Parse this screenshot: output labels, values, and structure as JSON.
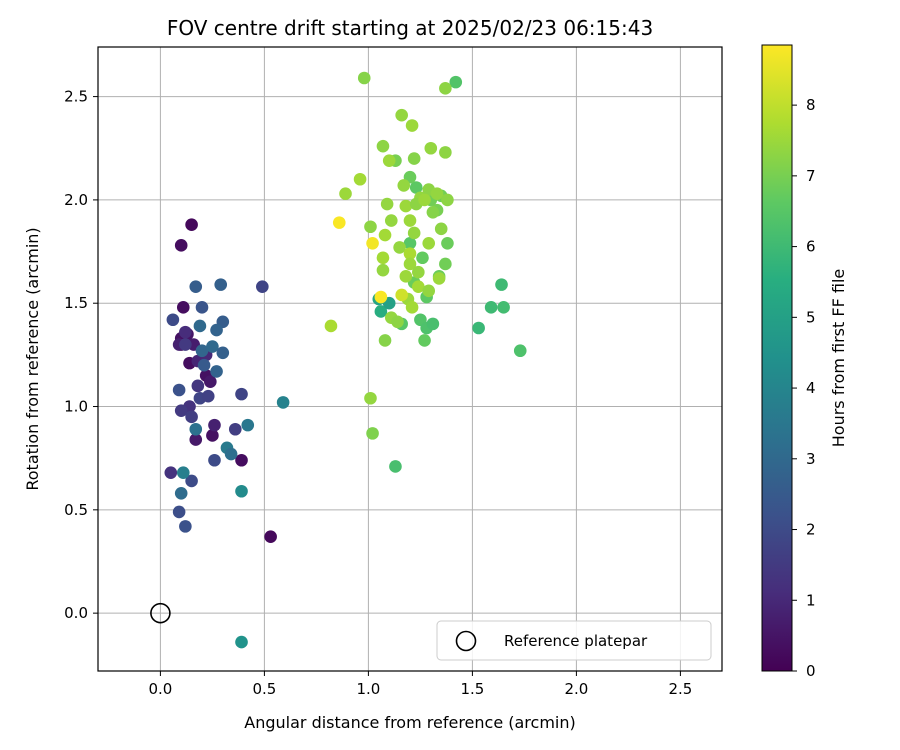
{
  "chart_data": {
    "type": "scatter",
    "title": "FOV centre drift starting at 2025/02/23 06:15:43",
    "xlabel": "Angular distance from reference (arcmin)",
    "ylabel": "Rotation from reference (arcmin)",
    "xlim": [
      -0.3,
      2.7
    ],
    "ylim": [
      -0.28,
      2.74
    ],
    "xticks": [
      "0.0",
      "0.5",
      "1.0",
      "1.5",
      "2.0",
      "2.5"
    ],
    "yticks": [
      "0.0",
      "0.5",
      "1.0",
      "1.5",
      "2.0",
      "2.5"
    ],
    "grid": true,
    "legend": {
      "label": "Reference platepar",
      "placement": "lower-right"
    },
    "reference_point": {
      "x": 0.0,
      "y": 0.0
    },
    "colorbar": {
      "label": "Hours from first FF file",
      "range": [
        0,
        8.85
      ],
      "ticks": [
        "0",
        "1",
        "2",
        "3",
        "4",
        "5",
        "6",
        "7",
        "8"
      ],
      "colormap": "viridis"
    },
    "points": [
      {
        "x": 0.15,
        "y": 1.88,
        "h": 0.2
      },
      {
        "x": 0.1,
        "y": 1.78,
        "h": 0.3
      },
      {
        "x": 0.11,
        "y": 1.48,
        "h": 0.3
      },
      {
        "x": 0.1,
        "y": 1.33,
        "h": 0.4
      },
      {
        "x": 0.1,
        "y": 1.3,
        "h": 0.2
      },
      {
        "x": 0.13,
        "y": 1.35,
        "h": 0.5
      },
      {
        "x": 0.14,
        "y": 1.21,
        "h": 0.3
      },
      {
        "x": 0.22,
        "y": 1.15,
        "h": 0.4
      },
      {
        "x": 0.25,
        "y": 0.86,
        "h": 0.4
      },
      {
        "x": 0.39,
        "y": 0.74,
        "h": 0.3
      },
      {
        "x": 0.53,
        "y": 0.37,
        "h": 0.2
      },
      {
        "x": 0.17,
        "y": 0.84,
        "h": 0.6
      },
      {
        "x": 0.24,
        "y": 1.12,
        "h": 0.6
      },
      {
        "x": 0.16,
        "y": 1.3,
        "h": 0.7
      },
      {
        "x": 0.26,
        "y": 0.91,
        "h": 0.8
      },
      {
        "x": 0.18,
        "y": 1.22,
        "h": 0.9
      },
      {
        "x": 0.22,
        "y": 1.25,
        "h": 1.0
      },
      {
        "x": 0.12,
        "y": 1.36,
        "h": 1.1
      },
      {
        "x": 0.09,
        "y": 1.3,
        "h": 0.8
      },
      {
        "x": 0.49,
        "y": 1.58,
        "h": 1.8
      },
      {
        "x": 0.06,
        "y": 1.42,
        "h": 2.0
      },
      {
        "x": 0.12,
        "y": 1.3,
        "h": 1.5
      },
      {
        "x": 0.18,
        "y": 1.1,
        "h": 1.4
      },
      {
        "x": 0.14,
        "y": 1.0,
        "h": 1.3
      },
      {
        "x": 0.1,
        "y": 0.98,
        "h": 1.5
      },
      {
        "x": 0.15,
        "y": 0.95,
        "h": 1.6
      },
      {
        "x": 0.19,
        "y": 1.04,
        "h": 1.8
      },
      {
        "x": 0.23,
        "y": 1.05,
        "h": 1.7
      },
      {
        "x": 0.36,
        "y": 0.89,
        "h": 1.6
      },
      {
        "x": 0.39,
        "y": 1.06,
        "h": 1.8
      },
      {
        "x": 0.09,
        "y": 1.08,
        "h": 2.2
      },
      {
        "x": 0.05,
        "y": 0.68,
        "h": 1.3
      },
      {
        "x": 0.09,
        "y": 0.49,
        "h": 2.1
      },
      {
        "x": 0.12,
        "y": 0.42,
        "h": 2.2
      },
      {
        "x": 0.15,
        "y": 0.64,
        "h": 2.0
      },
      {
        "x": 0.26,
        "y": 0.74,
        "h": 2.0
      },
      {
        "x": 0.17,
        "y": 1.58,
        "h": 2.6
      },
      {
        "x": 0.2,
        "y": 1.48,
        "h": 2.3
      },
      {
        "x": 0.29,
        "y": 1.59,
        "h": 2.7
      },
      {
        "x": 0.3,
        "y": 1.41,
        "h": 2.6
      },
      {
        "x": 0.27,
        "y": 1.37,
        "h": 2.8
      },
      {
        "x": 0.19,
        "y": 1.39,
        "h": 3.0
      },
      {
        "x": 0.2,
        "y": 1.27,
        "h": 2.9
      },
      {
        "x": 0.25,
        "y": 1.29,
        "h": 3.0
      },
      {
        "x": 0.3,
        "y": 1.26,
        "h": 2.7
      },
      {
        "x": 0.21,
        "y": 1.2,
        "h": 2.5
      },
      {
        "x": 0.27,
        "y": 1.17,
        "h": 2.8
      },
      {
        "x": 0.42,
        "y": 0.91,
        "h": 3.5
      },
      {
        "x": 0.17,
        "y": 0.89,
        "h": 3.3
      },
      {
        "x": 0.32,
        "y": 0.8,
        "h": 3.6
      },
      {
        "x": 0.34,
        "y": 0.77,
        "h": 3.2
      },
      {
        "x": 0.1,
        "y": 0.58,
        "h": 3.1
      },
      {
        "x": 0.11,
        "y": 0.68,
        "h": 3.8
      },
      {
        "x": 0.59,
        "y": 1.02,
        "h": 3.9
      },
      {
        "x": 0.39,
        "y": 0.59,
        "h": 4.2
      },
      {
        "x": 0.39,
        "y": -0.14,
        "h": 4.5
      },
      {
        "x": 1.05,
        "y": 1.52,
        "h": 5.2
      },
      {
        "x": 1.06,
        "y": 1.46,
        "h": 5.5
      },
      {
        "x": 1.1,
        "y": 1.5,
        "h": 5.0
      },
      {
        "x": 1.53,
        "y": 1.38,
        "h": 5.9
      },
      {
        "x": 1.59,
        "y": 1.48,
        "h": 6.0
      },
      {
        "x": 1.65,
        "y": 1.48,
        "h": 6.1
      },
      {
        "x": 1.64,
        "y": 1.59,
        "h": 6.0
      },
      {
        "x": 1.73,
        "y": 1.27,
        "h": 6.3
      },
      {
        "x": 1.13,
        "y": 0.71,
        "h": 6.2
      },
      {
        "x": 1.42,
        "y": 2.57,
        "h": 6.4
      },
      {
        "x": 1.25,
        "y": 1.42,
        "h": 6.4
      },
      {
        "x": 1.28,
        "y": 1.38,
        "h": 6.3
      },
      {
        "x": 1.31,
        "y": 1.4,
        "h": 6.2
      },
      {
        "x": 1.16,
        "y": 1.4,
        "h": 6.5
      },
      {
        "x": 1.28,
        "y": 1.53,
        "h": 6.6
      },
      {
        "x": 1.27,
        "y": 1.32,
        "h": 6.7
      },
      {
        "x": 1.23,
        "y": 2.06,
        "h": 6.6
      },
      {
        "x": 1.2,
        "y": 1.79,
        "h": 6.5
      },
      {
        "x": 1.22,
        "y": 1.6,
        "h": 6.8
      },
      {
        "x": 1.26,
        "y": 1.72,
        "h": 6.7
      },
      {
        "x": 1.34,
        "y": 1.63,
        "h": 6.8
      },
      {
        "x": 1.37,
        "y": 1.69,
        "h": 6.9
      },
      {
        "x": 1.38,
        "y": 1.79,
        "h": 6.8
      },
      {
        "x": 1.3,
        "y": 2.0,
        "h": 6.9
      },
      {
        "x": 1.33,
        "y": 1.95,
        "h": 7.0
      },
      {
        "x": 1.35,
        "y": 2.02,
        "h": 6.9
      },
      {
        "x": 1.2,
        "y": 2.11,
        "h": 6.8
      },
      {
        "x": 1.13,
        "y": 2.19,
        "h": 7.0
      },
      {
        "x": 1.22,
        "y": 2.2,
        "h": 7.2
      },
      {
        "x": 0.98,
        "y": 2.59,
        "h": 7.2
      },
      {
        "x": 1.37,
        "y": 2.54,
        "h": 7.3
      },
      {
        "x": 1.16,
        "y": 2.41,
        "h": 7.4
      },
      {
        "x": 1.21,
        "y": 2.36,
        "h": 7.5
      },
      {
        "x": 1.07,
        "y": 2.26,
        "h": 7.3
      },
      {
        "x": 1.3,
        "y": 2.25,
        "h": 7.4
      },
      {
        "x": 1.37,
        "y": 2.23,
        "h": 7.3
      },
      {
        "x": 1.1,
        "y": 2.19,
        "h": 7.5
      },
      {
        "x": 0.96,
        "y": 2.1,
        "h": 7.6
      },
      {
        "x": 0.89,
        "y": 2.03,
        "h": 7.5
      },
      {
        "x": 1.17,
        "y": 2.07,
        "h": 7.4
      },
      {
        "x": 1.25,
        "y": 2.01,
        "h": 7.4
      },
      {
        "x": 1.29,
        "y": 2.05,
        "h": 7.3
      },
      {
        "x": 1.33,
        "y": 2.03,
        "h": 7.4
      },
      {
        "x": 1.38,
        "y": 2.0,
        "h": 7.3
      },
      {
        "x": 1.09,
        "y": 1.98,
        "h": 7.4
      },
      {
        "x": 1.18,
        "y": 1.97,
        "h": 7.5
      },
      {
        "x": 1.23,
        "y": 1.98,
        "h": 7.3
      },
      {
        "x": 1.27,
        "y": 2.0,
        "h": 7.5
      },
      {
        "x": 1.31,
        "y": 1.94,
        "h": 7.2
      },
      {
        "x": 1.11,
        "y": 1.9,
        "h": 7.4
      },
      {
        "x": 1.2,
        "y": 1.9,
        "h": 7.5
      },
      {
        "x": 1.01,
        "y": 1.87,
        "h": 7.3
      },
      {
        "x": 1.08,
        "y": 1.83,
        "h": 7.6
      },
      {
        "x": 1.22,
        "y": 1.84,
        "h": 7.4
      },
      {
        "x": 1.35,
        "y": 1.86,
        "h": 7.3
      },
      {
        "x": 1.15,
        "y": 1.77,
        "h": 7.4
      },
      {
        "x": 1.2,
        "y": 1.74,
        "h": 7.7
      },
      {
        "x": 1.29,
        "y": 1.79,
        "h": 7.5
      },
      {
        "x": 1.07,
        "y": 1.72,
        "h": 7.6
      },
      {
        "x": 1.2,
        "y": 1.69,
        "h": 7.5
      },
      {
        "x": 1.07,
        "y": 1.66,
        "h": 7.4
      },
      {
        "x": 1.18,
        "y": 1.63,
        "h": 7.5
      },
      {
        "x": 1.24,
        "y": 1.65,
        "h": 7.4
      },
      {
        "x": 1.34,
        "y": 1.62,
        "h": 7.5
      },
      {
        "x": 1.24,
        "y": 1.58,
        "h": 7.6
      },
      {
        "x": 1.29,
        "y": 1.56,
        "h": 7.4
      },
      {
        "x": 1.19,
        "y": 1.52,
        "h": 7.5
      },
      {
        "x": 1.21,
        "y": 1.48,
        "h": 7.6
      },
      {
        "x": 1.11,
        "y": 1.43,
        "h": 7.4
      },
      {
        "x": 1.14,
        "y": 1.41,
        "h": 7.3
      },
      {
        "x": 0.82,
        "y": 1.39,
        "h": 7.7
      },
      {
        "x": 1.08,
        "y": 1.32,
        "h": 7.2
      },
      {
        "x": 1.01,
        "y": 1.04,
        "h": 7.4
      },
      {
        "x": 1.02,
        "y": 0.87,
        "h": 7.1
      },
      {
        "x": 1.16,
        "y": 1.54,
        "h": 8.2
      },
      {
        "x": 1.06,
        "y": 1.53,
        "h": 8.8
      },
      {
        "x": 1.02,
        "y": 1.79,
        "h": 8.7
      },
      {
        "x": 0.86,
        "y": 1.89,
        "h": 8.8
      }
    ]
  }
}
